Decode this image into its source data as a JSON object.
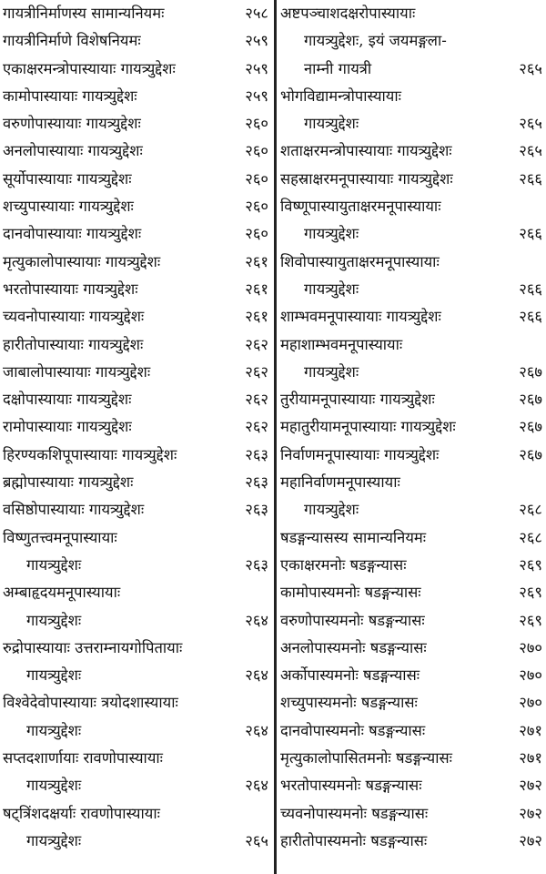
{
  "left_column": {
    "entries": [
      {
        "lines": [
          "गायत्रीनिर्माणस्य सामान्यनियमः"
        ],
        "page": "२५८"
      },
      {
        "lines": [
          "गायत्रीनिर्माणे विशेषनियमः"
        ],
        "page": "२५९"
      },
      {
        "lines": [
          "एकाक्षरमन्त्रोपास्यायाः गायत्र्युद्देशः"
        ],
        "page": "२५९"
      },
      {
        "lines": [
          "कामोपास्यायाः गायत्र्युद्देशः"
        ],
        "page": "२५९"
      },
      {
        "lines": [
          "वरुणोपास्यायाः गायत्र्युद्देशः"
        ],
        "page": "२६०"
      },
      {
        "lines": [
          "अनलोपास्यायाः गायत्र्युद्देशः"
        ],
        "page": "२६०"
      },
      {
        "lines": [
          "सूर्योपास्यायाः गायत्र्युद्देशः"
        ],
        "page": "२६०"
      },
      {
        "lines": [
          "शच्युपास्यायाः गायत्र्युद्देशः"
        ],
        "page": "२६०"
      },
      {
        "lines": [
          "दानवोपास्यायाः गायत्र्युद्देशः"
        ],
        "page": "२६०"
      },
      {
        "lines": [
          "मृत्युकालोपास्यायाः गायत्र्युद्देशः"
        ],
        "page": "२६१"
      },
      {
        "lines": [
          "भरतोपास्यायाः गायत्र्युद्देशः"
        ],
        "page": "२६१"
      },
      {
        "lines": [
          "च्यवनोपास्यायाः गायत्र्युद्देशः"
        ],
        "page": "२६१"
      },
      {
        "lines": [
          "हारीतोपास्यायाः गायत्र्युद्देशः"
        ],
        "page": "२६२"
      },
      {
        "lines": [
          "जाबालोपास्यायाः गायत्र्युद्देशः"
        ],
        "page": "२६२"
      },
      {
        "lines": [
          "दक्षोपास्यायाः गायत्र्युद्देशः"
        ],
        "page": "२६२"
      },
      {
        "lines": [
          "रामोपास्यायाः गायत्र्युद्देशः"
        ],
        "page": "२६२"
      },
      {
        "lines": [
          "हिरण्यकशिपूपास्यायाः गायत्र्युद्देशः"
        ],
        "page": "२६३"
      },
      {
        "lines": [
          "ब्रह्मोपास्यायाः गायत्र्युद्देशः"
        ],
        "page": "२६३"
      },
      {
        "lines": [
          "वसिष्ठोपास्यायाः गायत्र्युद्देशः"
        ],
        "page": "२६३"
      },
      {
        "lines": [
          "विष्णुतत्त्वमनूपास्यायाः",
          "गायत्र्युद्देशः"
        ],
        "page": "२६३"
      },
      {
        "lines": [
          "अम्बाहृदयमनूपास्यायाः",
          "गायत्र्युद्देशः"
        ],
        "page": "२६४"
      },
      {
        "lines": [
          "रुद्रोपास्यायाः उत्तराम्नायगोपितायाः",
          "गायत्र्युद्देशः"
        ],
        "page": "२६४"
      },
      {
        "lines": [
          "विश्वेदेवोपास्यायाः त्रयोदशास्यायाः",
          "गायत्र्युद्देशः"
        ],
        "page": "२६४"
      },
      {
        "lines": [
          "सप्तदशार्णायाः रावणोपास्यायाः",
          "गायत्र्युद्देशः"
        ],
        "page": "२६४"
      },
      {
        "lines": [
          "षट्त्रिंशदक्षर्याः रावणोपास्यायाः",
          "गायत्र्युद्देशः"
        ],
        "page": "२६५"
      }
    ]
  },
  "right_column": {
    "entries": [
      {
        "lines": [
          "अष्टपञ्चाशदक्षरोपास्यायाः",
          "गायत्र्युद्देशः, इयं जयमङ्गला-",
          "नाम्नी गायत्री"
        ],
        "page": "२६५"
      },
      {
        "lines": [
          "भोगविद्यामन्त्रोपास्यायाः",
          "गायत्र्युद्देशः"
        ],
        "page": "२६५"
      },
      {
        "lines": [
          "शताक्षरमन्त्रोपास्यायाः गायत्र्युद्देशः"
        ],
        "page": "२६५"
      },
      {
        "lines": [
          "सहस्राक्षरमनूपास्यायाः गायत्र्युद्देशः"
        ],
        "page": "२६६"
      },
      {
        "lines": [
          "विष्णूपास्यायुताक्षरमनूपास्यायाः",
          "गायत्र्युद्देशः"
        ],
        "page": "२६६"
      },
      {
        "lines": [
          "शिवोपास्यायुताक्षरमनूपास्यायाः",
          "गायत्र्युद्देशः"
        ],
        "page": "२६६"
      },
      {
        "lines": [
          "शाम्भवमनूपास्यायाः गायत्र्युद्देशः"
        ],
        "page": "२६६"
      },
      {
        "lines": [
          "महाशाम्भवमनूपास्यायाः",
          "गायत्र्युद्देशः"
        ],
        "page": "२६७"
      },
      {
        "lines": [
          "तुरीयामनूपास्यायाः गायत्र्युद्देशः"
        ],
        "page": "२६७"
      },
      {
        "lines": [
          "महातुरीयामनूपास्यायाः गायत्र्युद्देशः"
        ],
        "page": "२६७"
      },
      {
        "lines": [
          "निर्वाणमनूपास्यायाः गायत्र्युद्देशः"
        ],
        "page": "२६७"
      },
      {
        "lines": [
          "महानिर्वाणमनूपास्यायाः",
          "गायत्र्युद्देशः"
        ],
        "page": "२६८"
      },
      {
        "lines": [
          "षडङ्गन्यासस्य सामान्यनियमः"
        ],
        "page": "२६८"
      },
      {
        "lines": [
          "एकाक्षरमनोः षडङ्गन्यासः"
        ],
        "page": "२६९"
      },
      {
        "lines": [
          "कामोपास्यमनोः षडङ्गन्यासः"
        ],
        "page": "२६९"
      },
      {
        "lines": [
          "वरुणोपास्यमनोः षडङ्गन्यासः"
        ],
        "page": "२६९"
      },
      {
        "lines": [
          "अनलोपास्यमनोः षडङ्गन्यासः"
        ],
        "page": "२७०"
      },
      {
        "lines": [
          "अर्कोपास्यमनोः षडङ्गन्यासः"
        ],
        "page": "२७०"
      },
      {
        "lines": [
          "शच्युपास्यमनोः षडङ्गन्यासः"
        ],
        "page": "२७०"
      },
      {
        "lines": [
          "दानवोपास्यमनोः षडङ्गन्यासः"
        ],
        "page": "२७१"
      },
      {
        "lines": [
          "मृत्युकालोपासितमनोः षडङ्गन्यासः"
        ],
        "page": "२७१"
      },
      {
        "lines": [
          "भरतोपास्यमनोः षडङ्गन्यासः"
        ],
        "page": "२७२"
      },
      {
        "lines": [
          "च्यवनोपास्यमनोः षडङ्गन्यासः"
        ],
        "page": "२७२"
      },
      {
        "lines": [
          "हारीतोपास्यमनोः षडङ्गन्यासः"
        ],
        "page": "२७२"
      }
    ]
  }
}
